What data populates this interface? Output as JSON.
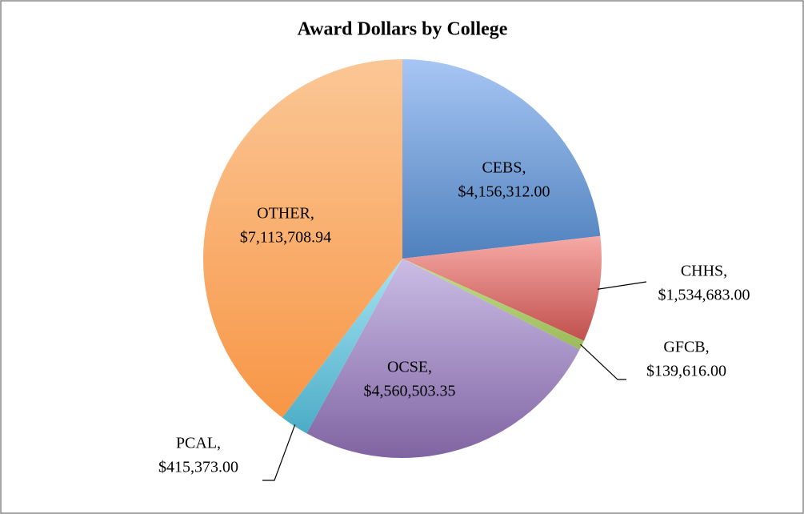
{
  "chart_data": {
    "type": "pie",
    "title": "Award Dollars by College",
    "categories": [
      "CEBS,",
      "CHHS,",
      "GFCB,",
      "OCSE,",
      "PCAL,",
      "OTHER,"
    ],
    "values": [
      4156312.0,
      1534683.0,
      139616.0,
      4560503.35,
      415373.0,
      7113708.94
    ],
    "value_labels": [
      "$4,156,312.00",
      "$1,534,683.00",
      "$139,616.00",
      "$4,560,503.35",
      "$415,373.00",
      "$7,113,708.94"
    ],
    "colors": [
      "#4f81bd",
      "#c0504d",
      "#9bbb59",
      "#8064a2",
      "#4bacc6",
      "#f79646"
    ],
    "light_colors": [
      "#a7c6f4",
      "#f7aaa6",
      "#c3df8a",
      "#cbbde6",
      "#a6e3f3",
      "#fbc796"
    ]
  }
}
